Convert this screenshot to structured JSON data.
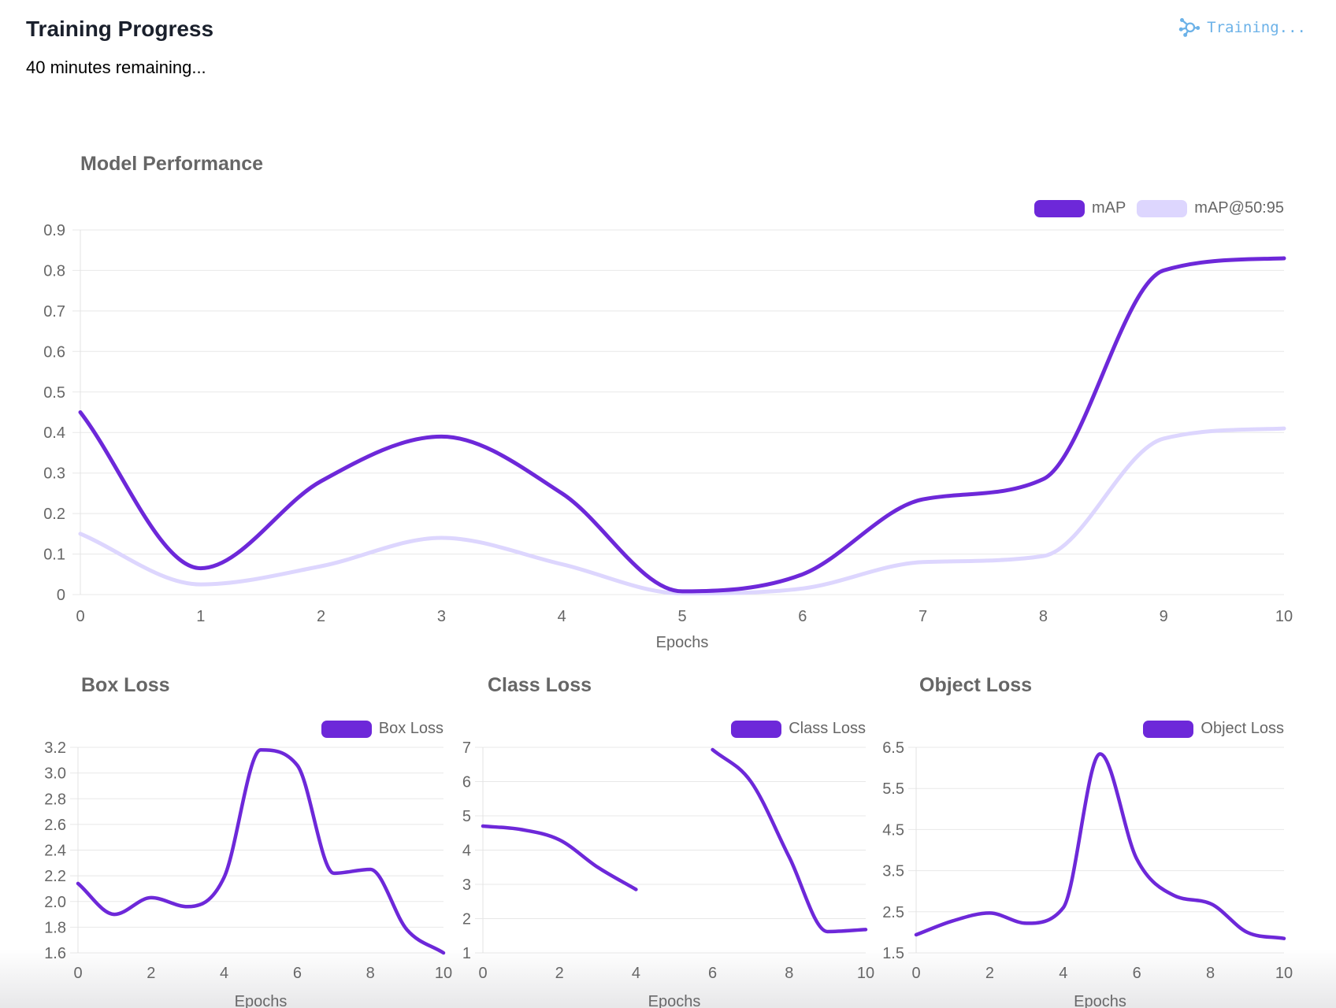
{
  "header": {
    "title": "Training Progress",
    "subtitle": "40 minutes remaining...",
    "training_status": "Training..."
  },
  "colors": {
    "purple": "#6D28D9",
    "lavender": "#DDD6FE",
    "blue": "#6CB2E8",
    "grid": "#E8E8E8",
    "axis": "#E3E3E3",
    "tick_text": "#666666",
    "chart_title_text": "#666666"
  },
  "chart_data": [
    {
      "id": "model_performance",
      "type": "line",
      "title": "Model Performance",
      "xlabel": "Epochs",
      "x": [
        0,
        1,
        2,
        3,
        4,
        5,
        6,
        7,
        8,
        9,
        10
      ],
      "xticks": [
        0,
        1,
        2,
        3,
        4,
        5,
        6,
        7,
        8,
        9,
        10
      ],
      "ylim": [
        0,
        0.9
      ],
      "yticks": [
        0,
        0.1,
        0.2,
        0.3,
        0.4,
        0.5,
        0.6,
        0.7,
        0.8,
        0.9
      ],
      "ytick_labels": [
        "0",
        "0.1",
        "0.2",
        "0.3",
        "0.4",
        "0.5",
        "0.6",
        "0.7",
        "0.8",
        "0.9"
      ],
      "grid": "horizontal",
      "legend_position": "top-right",
      "series": [
        {
          "name": "mAP",
          "color": "#6D28D9",
          "values": [
            0.45,
            0.065,
            0.28,
            0.39,
            0.25,
            0.008,
            0.05,
            0.235,
            0.285,
            0.8,
            0.83
          ]
        },
        {
          "name": "mAP@50:95",
          "color": "#DDD6FE",
          "values": [
            0.15,
            0.025,
            0.07,
            0.14,
            0.075,
            0.003,
            0.015,
            0.08,
            0.095,
            0.385,
            0.41
          ]
        }
      ]
    },
    {
      "id": "box_loss",
      "type": "line",
      "title": "Box Loss",
      "xlabel": "Epochs",
      "x": [
        0,
        1,
        2,
        3,
        4,
        5,
        6,
        7,
        8,
        9,
        10
      ],
      "xticks": [
        0,
        2,
        4,
        6,
        8,
        10
      ],
      "ylim": [
        1.6,
        3.2
      ],
      "yticks": [
        1.6,
        1.8,
        2.0,
        2.2,
        2.4,
        2.6,
        2.8,
        3.0,
        3.2
      ],
      "ytick_labels": [
        "1.6",
        "1.8",
        "2.0",
        "2.2",
        "2.4",
        "2.6",
        "2.8",
        "3.0",
        "3.2"
      ],
      "grid": "horizontal",
      "legend_position": "top-right",
      "series": [
        {
          "name": "Box Loss",
          "color": "#6D28D9",
          "values": [
            2.14,
            1.9,
            2.03,
            1.96,
            2.19,
            3.18,
            3.06,
            2.22,
            2.25,
            1.78,
            1.6
          ]
        }
      ]
    },
    {
      "id": "class_loss",
      "type": "line",
      "title": "Class Loss",
      "xlabel": "Epochs",
      "x": [
        0,
        1,
        2,
        3,
        4,
        5,
        6,
        7,
        8,
        9,
        10
      ],
      "xticks": [
        0,
        2,
        4,
        6,
        8,
        10
      ],
      "ylim": [
        1,
        7
      ],
      "yticks": [
        1,
        2,
        3,
        4,
        5,
        6,
        7
      ],
      "ytick_labels": [
        "1",
        "2",
        "3",
        "4",
        "5",
        "6",
        "7"
      ],
      "grid": "horizontal",
      "legend_position": "top-right",
      "series": [
        {
          "name": "Class Loss",
          "color": "#6D28D9",
          "values": [
            4.7,
            4.6,
            4.3,
            3.5,
            2.85,
            null,
            6.93,
            6.0,
            3.8,
            1.62,
            1.68
          ]
        }
      ]
    },
    {
      "id": "object_loss",
      "type": "line",
      "title": "Object Loss",
      "xlabel": "Epochs",
      "x": [
        0,
        1,
        2,
        3,
        4,
        5,
        6,
        7,
        8,
        9,
        10
      ],
      "xticks": [
        0,
        2,
        4,
        6,
        8,
        10
      ],
      "ylim": [
        1.5,
        6.5
      ],
      "yticks": [
        1.5,
        2.5,
        3.5,
        4.5,
        5.5,
        6.5
      ],
      "ytick_labels": [
        "1.5",
        "2.5",
        "3.5",
        "4.5",
        "5.5",
        "6.5"
      ],
      "grid": "horizontal",
      "legend_position": "top-right",
      "series": [
        {
          "name": "Object Loss",
          "color": "#6D28D9",
          "values": [
            1.94,
            2.28,
            2.47,
            2.22,
            2.6,
            6.34,
            3.78,
            2.9,
            2.7,
            2.0,
            1.85
          ]
        }
      ]
    }
  ]
}
